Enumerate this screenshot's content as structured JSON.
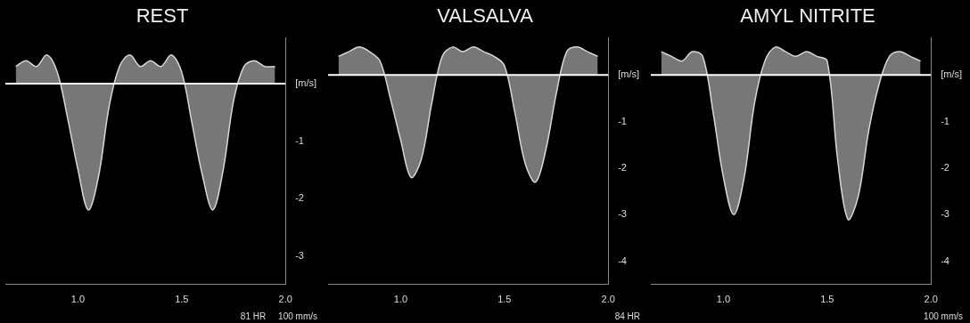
{
  "chart_data": [
    {
      "type": "line",
      "title": "REST",
      "color": "#d8d8d8",
      "grid": false,
      "marker": "none",
      "x": [
        0.7,
        0.75,
        0.8,
        0.85,
        0.9,
        0.95,
        1.0,
        1.05,
        1.1,
        1.15,
        1.2,
        1.25,
        1.3,
        1.35,
        1.4,
        1.45,
        1.5,
        1.55,
        1.6,
        1.65,
        1.7,
        1.75,
        1.8,
        1.85,
        1.9,
        1.95
      ],
      "values": [
        0.3,
        0.4,
        0.3,
        0.5,
        0.2,
        -0.6,
        -1.5,
        -2.2,
        -1.6,
        -0.4,
        0.3,
        0.5,
        0.3,
        0.4,
        0.3,
        0.5,
        0.2,
        -0.7,
        -1.6,
        -2.2,
        -1.5,
        -0.3,
        0.3,
        0.4,
        0.3,
        0.3
      ],
      "xlim": [
        0.65,
        2.0
      ],
      "xticks": [
        {
          "value": 1.0,
          "label": "1.0"
        },
        {
          "value": 1.5,
          "label": "1.5"
        },
        {
          "value": 2.0,
          "label": "2.0"
        }
      ],
      "ylim": [
        -3.5,
        0.8
      ],
      "yticks": [
        {
          "value": 0,
          "label": "[m/s]"
        },
        -1,
        -2,
        -3
      ],
      "annotations": [
        "81 HR",
        "100 mm/s"
      ]
    },
    {
      "type": "line",
      "title": "VALSALVA",
      "color": "#d8d8d8",
      "grid": false,
      "marker": "none",
      "x": [
        0.7,
        0.75,
        0.8,
        0.85,
        0.9,
        0.95,
        1.0,
        1.05,
        1.1,
        1.15,
        1.2,
        1.25,
        1.3,
        1.35,
        1.4,
        1.45,
        1.5,
        1.55,
        1.6,
        1.65,
        1.7,
        1.75,
        1.8,
        1.85,
        1.9,
        1.95
      ],
      "values": [
        0.4,
        0.5,
        0.6,
        0.5,
        0.3,
        -0.5,
        -1.4,
        -2.2,
        -1.8,
        -0.6,
        0.4,
        0.6,
        0.5,
        0.6,
        0.5,
        0.4,
        0.2,
        -0.8,
        -1.9,
        -2.3,
        -1.6,
        -0.4,
        0.5,
        0.6,
        0.5,
        0.4
      ],
      "xlim": [
        0.65,
        2.0
      ],
      "xticks": [
        {
          "value": 1.0,
          "label": "1.0"
        },
        {
          "value": 1.5,
          "label": "1.5"
        },
        {
          "value": 2.0,
          "label": "2.0"
        }
      ],
      "ylim": [
        -4.5,
        0.8
      ],
      "yticks": [
        {
          "value": 0,
          "label": "[m/s]"
        },
        -1,
        -2,
        -3,
        -4
      ],
      "annotations": [
        "84 HR"
      ]
    },
    {
      "type": "line",
      "title": "AMYL NITRITE",
      "color": "#d8d8d8",
      "grid": false,
      "marker": "none",
      "x": [
        0.7,
        0.75,
        0.8,
        0.85,
        0.9,
        0.95,
        1.0,
        1.05,
        1.1,
        1.15,
        1.2,
        1.25,
        1.3,
        1.35,
        1.4,
        1.45,
        1.5,
        1.55,
        1.6,
        1.65,
        1.7,
        1.75,
        1.8,
        1.85,
        1.9,
        1.95
      ],
      "values": [
        0.5,
        0.4,
        0.3,
        0.5,
        0.4,
        -0.8,
        -2.2,
        -3.0,
        -2.2,
        -0.6,
        0.3,
        0.6,
        0.5,
        0.4,
        0.5,
        0.4,
        0.3,
        -1.8,
        -3.1,
        -2.6,
        -1.2,
        -0.2,
        0.4,
        0.5,
        0.4,
        0.3
      ],
      "xlim": [
        0.65,
        2.0
      ],
      "xticks": [
        {
          "value": 1.0,
          "label": "1.0"
        },
        {
          "value": 1.5,
          "label": "1.5"
        },
        {
          "value": 2.0,
          "label": "2.0"
        }
      ],
      "ylim": [
        -4.5,
        0.8
      ],
      "yticks": [
        {
          "value": 0,
          "label": "[m/s]"
        },
        -1,
        -2,
        -3,
        -4
      ],
      "annotations": [
        "100 mm/s"
      ]
    }
  ]
}
